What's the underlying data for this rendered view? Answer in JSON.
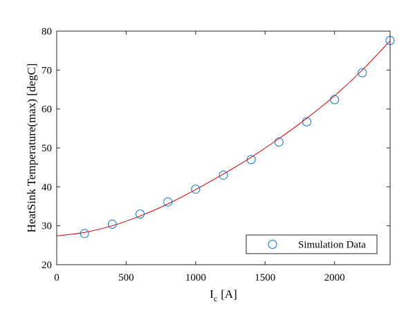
{
  "chart_data": {
    "type": "scatter",
    "xlabel": "I",
    "xlabel_sub": "c",
    "xlabel_unit": "[A]",
    "ylabel": "HeatSink Temperature(max) [degC]",
    "xlim": [
      0,
      2400
    ],
    "ylim": [
      20,
      80
    ],
    "xticks": [
      "0",
      "500",
      "1000",
      "1500",
      "2000"
    ],
    "yticks": [
      "20",
      "30",
      "40",
      "50",
      "60",
      "70",
      "80"
    ],
    "grid": false,
    "legend": "bottom-right",
    "series": [
      {
        "name": "Simulation Data",
        "marker": "circle-open",
        "color": "#0072BD",
        "x": [
          200,
          400,
          600,
          800,
          1000,
          1200,
          1400,
          1600,
          1800,
          2000,
          2200,
          2400
        ],
        "y": [
          28.0,
          30.4,
          33.0,
          36.1,
          39.4,
          43.0,
          47.0,
          51.5,
          56.7,
          62.4,
          69.3,
          77.6
        ]
      }
    ],
    "fit_curve": {
      "color": "#D40000",
      "x": [
        0,
        200,
        400,
        600,
        800,
        1000,
        1200,
        1400,
        1600,
        1800,
        2000,
        2200,
        2400
      ],
      "y": [
        27.4,
        28.3,
        30.0,
        32.5,
        35.6,
        39.3,
        43.3,
        47.6,
        52.4,
        57.6,
        63.4,
        70.0,
        77.5
      ]
    }
  }
}
